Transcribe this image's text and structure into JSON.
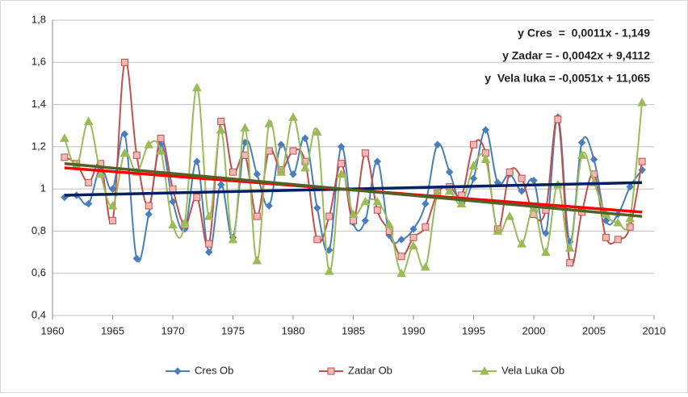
{
  "chart_data": {
    "type": "line",
    "x": [
      1961,
      1962,
      1963,
      1964,
      1965,
      1966,
      1967,
      1968,
      1969,
      1970,
      1971,
      1972,
      1973,
      1974,
      1975,
      1976,
      1977,
      1978,
      1979,
      1980,
      1981,
      1982,
      1983,
      1984,
      1985,
      1986,
      1987,
      1988,
      1989,
      1990,
      1991,
      1992,
      1993,
      1994,
      1995,
      1996,
      1997,
      1998,
      1999,
      2000,
      2001,
      2002,
      2003,
      2004,
      2005,
      2006,
      2007,
      2008,
      2009
    ],
    "xlim": [
      1960,
      2010
    ],
    "xticks": [
      1960,
      1965,
      1970,
      1975,
      1980,
      1985,
      1990,
      1995,
      2000,
      2005,
      2010
    ],
    "ylim": [
      0.4,
      1.8
    ],
    "yticks": [
      {
        "value": 0.4,
        "label": "0,4"
      },
      {
        "value": 0.6,
        "label": "0,6"
      },
      {
        "value": 0.8,
        "label": "0,8"
      },
      1,
      {
        "value": 1.2,
        "label": "1,2"
      },
      {
        "value": 1.4,
        "label": "1,4"
      },
      {
        "value": 1.6,
        "label": "1,6"
      },
      {
        "value": 1.8,
        "label": "1,8"
      }
    ],
    "grid": true,
    "legend": "bottom",
    "series": [
      {
        "name": "Cres Ob",
        "color": "#4a7ebb",
        "marker": "diamond",
        "values": [
          0.96,
          0.97,
          0.93,
          1.1,
          1.0,
          1.26,
          0.67,
          0.88,
          1.21,
          0.94,
          0.81,
          1.13,
          0.7,
          1.02,
          0.77,
          1.22,
          1.07,
          0.92,
          1.21,
          1.07,
          1.24,
          0.91,
          0.71,
          1.2,
          0.84,
          0.85,
          1.13,
          0.78,
          0.76,
          0.81,
          0.93,
          1.21,
          1.08,
          0.93,
          1.05,
          1.28,
          1.03,
          1.07,
          0.99,
          1.04,
          0.79,
          1.34,
          0.75,
          1.22,
          1.14,
          0.85,
          0.88,
          1.01,
          1.09
        ],
        "trend": {
          "x": [
            1961,
            2009
          ],
          "values": [
            0.97,
            1.03
          ],
          "color": "#002060"
        },
        "equation": {
          "text": "y Cres  =  0,0011x - 1,149",
          "color": "#1f3f7a"
        }
      },
      {
        "name": "Zadar Ob",
        "color": "#c0504d",
        "marker": "square",
        "values": [
          1.15,
          1.12,
          1.03,
          1.12,
          0.85,
          1.6,
          1.16,
          0.92,
          1.24,
          1.0,
          0.83,
          0.96,
          0.74,
          1.32,
          1.08,
          1.16,
          0.87,
          1.18,
          1.09,
          1.18,
          1.13,
          0.76,
          0.87,
          1.12,
          0.85,
          1.17,
          0.9,
          0.8,
          0.68,
          0.77,
          0.82,
          0.98,
          1.01,
          0.97,
          1.21,
          1.17,
          0.81,
          1.08,
          1.05,
          0.88,
          0.9,
          1.33,
          0.65,
          0.89,
          1.07,
          0.77,
          0.76,
          0.82,
          1.13
        ],
        "trend": {
          "x": [
            1961,
            2009
          ],
          "values": [
            1.1,
            0.89
          ],
          "color": "#ff0000"
        },
        "equation": {
          "text": "y Zadar = - 0,0042x + 9,4112",
          "color": "#ff0000"
        }
      },
      {
        "name": "Vela Luka Ob",
        "color": "#9bbb59",
        "marker": "triangle",
        "values": [
          1.24,
          1.11,
          1.32,
          1.07,
          0.92,
          1.17,
          1.08,
          1.21,
          1.18,
          0.83,
          0.84,
          1.48,
          0.87,
          1.28,
          0.76,
          1.29,
          0.66,
          1.31,
          1.08,
          1.34,
          1.1,
          1.27,
          0.61,
          1.07,
          0.88,
          0.94,
          0.94,
          0.83,
          0.6,
          0.73,
          0.63,
          0.98,
          0.99,
          0.93,
          1.11,
          1.14,
          0.8,
          0.87,
          0.74,
          0.91,
          0.7,
          1.02,
          0.72,
          1.16,
          1.03,
          0.88,
          0.84,
          0.86,
          1.41
        ],
        "trend": {
          "x": [
            1961,
            2009
          ],
          "values": [
            1.12,
            0.87
          ],
          "color": "#4f6228"
        },
        "equation": {
          "text": "y  Vela luka = -0,0051x + 11,065",
          "color": "#4f6228"
        }
      }
    ]
  }
}
